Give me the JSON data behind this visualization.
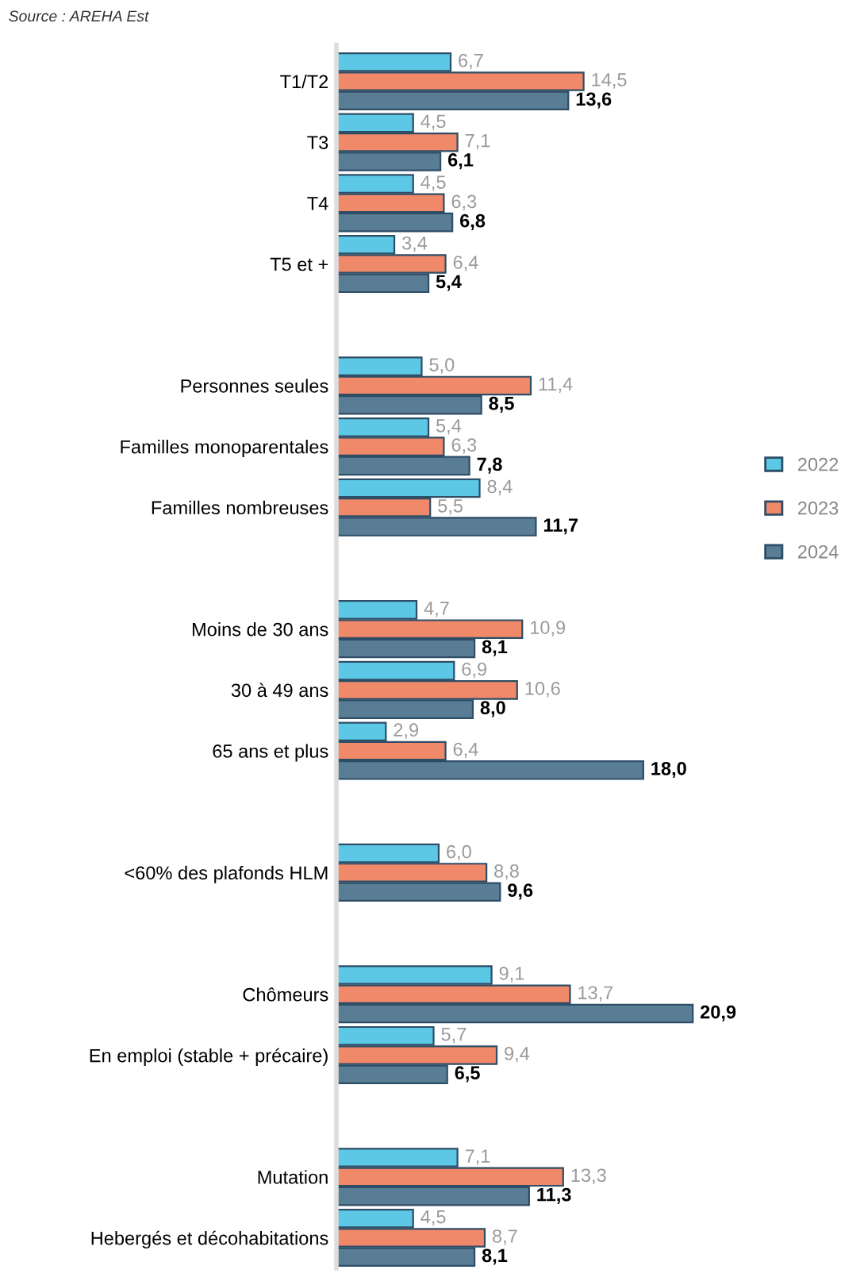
{
  "chart_data": {
    "type": "bar",
    "orientation": "horizontal",
    "legend": "right",
    "grid": false,
    "annotations": [
      "Source : AREHA Est"
    ],
    "categories": [
      "T1/T2",
      "T3",
      "T4",
      "T5 et +",
      null,
      "Personnes seules",
      "Familles monoparentales",
      "Familles nombreuses",
      null,
      "Moins de 30 ans",
      "30 à 49 ans",
      "65 ans et plus",
      null,
      "<60% des plafonds HLM",
      null,
      "Chômeurs",
      "En emploi (stable + précaire)",
      null,
      "Mutation",
      "Hebergés et décohabitations"
    ],
    "series": [
      {
        "name": "2022",
        "color": "#5cc8e6",
        "values": [
          6.7,
          4.5,
          4.5,
          3.4,
          null,
          5.0,
          5.4,
          8.4,
          null,
          4.7,
          6.9,
          2.9,
          null,
          6.0,
          null,
          9.1,
          5.7,
          null,
          7.1,
          4.5
        ],
        "value_labels": [
          "6,7",
          "4,5",
          "4,5",
          "3,4",
          null,
          "5,0",
          "5,4",
          "8,4",
          null,
          "4,7",
          "6,9",
          "2,9",
          null,
          "6,0",
          null,
          "9,1",
          "5,7",
          null,
          "7,1",
          "4,5"
        ]
      },
      {
        "name": "2023",
        "color": "#f0896a",
        "values": [
          14.5,
          7.1,
          6.3,
          6.4,
          null,
          11.4,
          6.3,
          5.5,
          null,
          10.9,
          10.6,
          6.4,
          null,
          8.8,
          null,
          13.7,
          9.4,
          null,
          13.3,
          8.7
        ],
        "value_labels": [
          "14,5",
          "7,1",
          "6,3",
          "6,4",
          null,
          "11,4",
          "6,3",
          "5,5",
          null,
          "10,9",
          "10,6",
          "6,4",
          null,
          "8,8",
          null,
          "13,7",
          "9,4",
          null,
          "13,3",
          "8,7"
        ]
      },
      {
        "name": "2024",
        "color": "#5a7d96",
        "values": [
          13.6,
          6.1,
          6.8,
          5.4,
          null,
          8.5,
          7.8,
          11.7,
          null,
          8.1,
          8.0,
          18.0,
          null,
          9.6,
          null,
          20.9,
          6.5,
          null,
          11.3,
          8.1
        ],
        "value_labels": [
          "13,6",
          "6,1",
          "6,8",
          "5,4",
          null,
          "8,5",
          "7,8",
          "11,7",
          null,
          "8,1",
          "8,0",
          "18,0",
          null,
          "9,6",
          null,
          "20,9",
          "6,5",
          null,
          "11,3",
          "8,1"
        ]
      }
    ]
  }
}
